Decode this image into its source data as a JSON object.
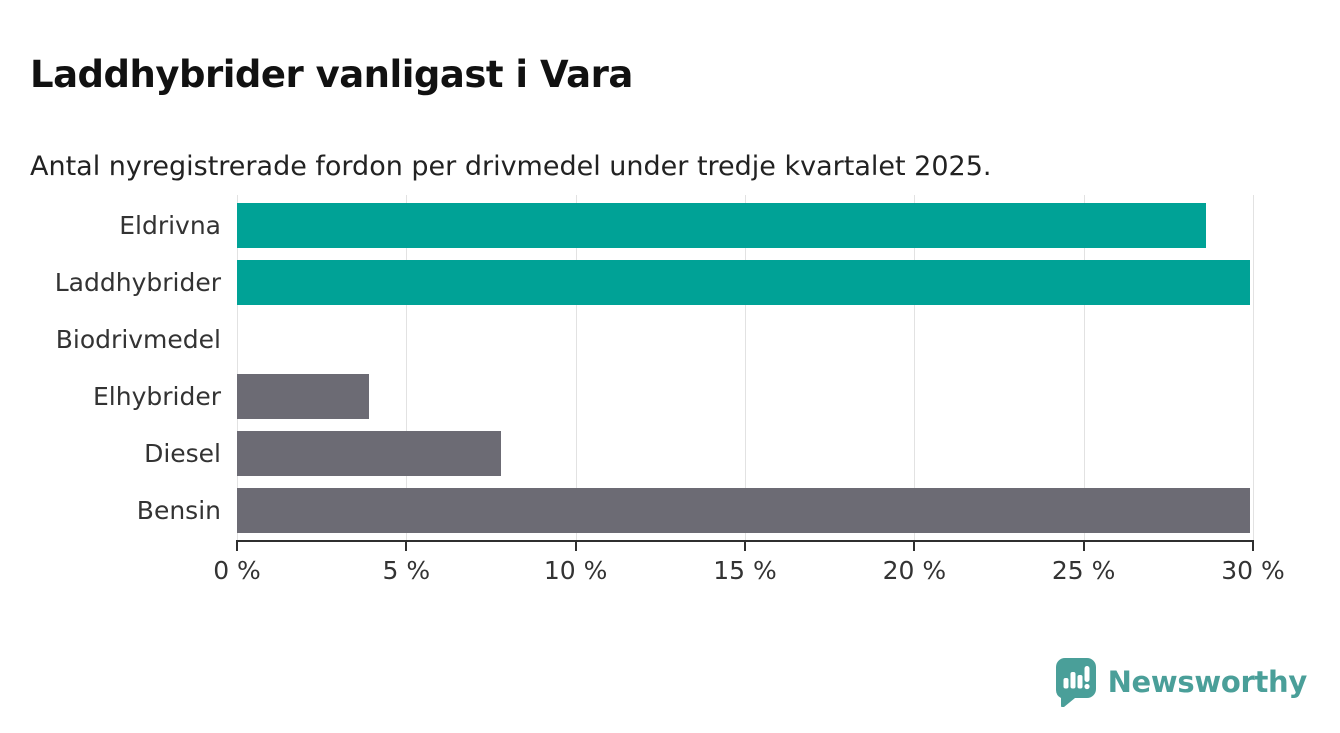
{
  "header": {
    "title": "Laddhybrider vanligast i Vara",
    "subtitle": "Antal nyregistrerade fordon per drivmedel under tredje kvartalet 2025."
  },
  "chart_data": {
    "type": "bar",
    "orientation": "horizontal",
    "title": "Laddhybrider vanligast i Vara",
    "subtitle": "Antal nyregistrerade fordon per drivmedel under tredje kvartalet 2025.",
    "categories": [
      "Eldrivna",
      "Laddhybrider",
      "Biodrivmedel",
      "Elhybrider",
      "Diesel",
      "Bensin"
    ],
    "values": [
      28.6,
      29.9,
      0,
      3.9,
      7.8,
      29.9
    ],
    "unit": "%",
    "bar_colors": [
      "#00a296",
      "#00a296",
      "#6c6b74",
      "#6c6b74",
      "#6c6b74",
      "#6c6b74"
    ],
    "x_ticks": [
      "0 %",
      "5 %",
      "10 %",
      "15 %",
      "20 %",
      "25 %",
      "30 %"
    ],
    "x_tick_values": [
      0,
      5,
      10,
      15,
      20,
      25,
      30
    ],
    "xlim": [
      0,
      30
    ],
    "grid": true,
    "legend": false
  },
  "branding": {
    "logo_text": "Newsworthy",
    "logo_icon": "newsworthy-speech-bubble-chart-icon",
    "logo_color": "#4a9f99"
  },
  "colors": {
    "highlight": "#00a296",
    "default_bar": "#6c6b74",
    "gridline": "#e2e2e2",
    "axis": "#2f2f2f",
    "label_text": "#333333",
    "title_text": "#111111",
    "background": "#ffffff"
  }
}
